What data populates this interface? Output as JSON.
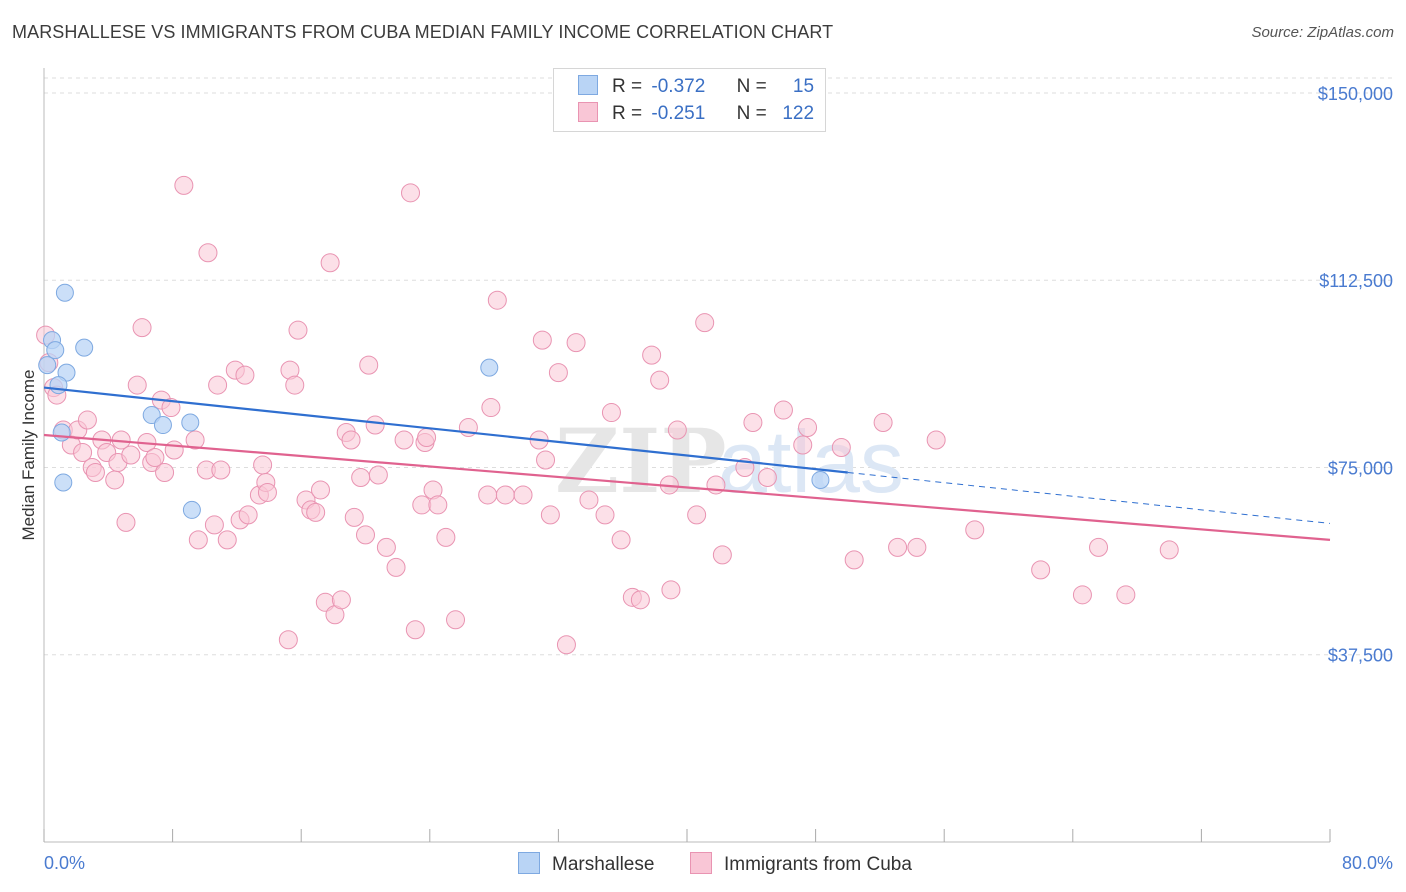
{
  "title": "MARSHALLESE VS IMMIGRANTS FROM CUBA MEDIAN FAMILY INCOME CORRELATION CHART",
  "source": "Source: ZipAtlas.com",
  "watermark": "ZIPatlas",
  "legend_top": {
    "rows": [
      {
        "r_label": "R =",
        "r_value": "-0.372",
        "n_label": "N =",
        "n_value": "15"
      },
      {
        "r_label": "R =",
        "r_value": "-0.251",
        "n_label": "N =",
        "n_value": "122"
      }
    ]
  },
  "colors": {
    "marshallese_fill": "#b9d4f5",
    "marshallese_stroke": "#7ea9e1",
    "marshallese_line": "#2f6fd0",
    "cuba_fill": "#f9c6d6",
    "cuba_stroke": "#e994b2",
    "cuba_line": "#e0628f",
    "axis_text": "#4a7bd0"
  },
  "chart_data": {
    "type": "scatter",
    "title": "MARSHALLESE VS IMMIGRANTS FROM CUBA MEDIAN FAMILY INCOME CORRELATION CHART",
    "xlabel": "",
    "ylabel": "Median Family Income",
    "xlim": [
      0,
      80
    ],
    "ylim": [
      0,
      155000
    ],
    "x_tick_labels": [
      "0.0%",
      "80.0%"
    ],
    "y_ticks": [
      37500,
      75000,
      112500,
      150000
    ],
    "y_tick_labels": [
      "$37,500",
      "$75,000",
      "$112,500",
      "$150,000"
    ],
    "grid": true,
    "legend_position": "top-center",
    "series": [
      {
        "name": "Marshallese",
        "points": [
          [
            0.5,
            100500
          ],
          [
            0.7,
            98500
          ],
          [
            1.3,
            110000
          ],
          [
            1.4,
            94000
          ],
          [
            2.5,
            99000
          ],
          [
            0.9,
            91500
          ],
          [
            1.1,
            82000
          ],
          [
            1.2,
            72000
          ],
          [
            6.7,
            85500
          ],
          [
            7.4,
            83500
          ],
          [
            9.1,
            84000
          ],
          [
            9.2,
            66500
          ],
          [
            27.7,
            95000
          ],
          [
            48.3,
            72500
          ],
          [
            0.2,
            95500
          ]
        ],
        "trend": {
          "x0": 0,
          "y0": 91000,
          "x1": 50,
          "y1": 74000,
          "dash_to_x": 80,
          "dash_to_y": 63800
        }
      },
      {
        "name": "Immigrants from Cuba",
        "points": [
          [
            0.1,
            101500
          ],
          [
            0.3,
            96000
          ],
          [
            0.6,
            91000
          ],
          [
            0.8,
            89500
          ],
          [
            1.2,
            82500
          ],
          [
            1.7,
            79500
          ],
          [
            2.1,
            82500
          ],
          [
            2.4,
            78000
          ],
          [
            2.7,
            84500
          ],
          [
            3.0,
            75000
          ],
          [
            3.2,
            74000
          ],
          [
            3.6,
            80500
          ],
          [
            3.9,
            78000
          ],
          [
            4.4,
            72500
          ],
          [
            4.6,
            76000
          ],
          [
            4.8,
            80500
          ],
          [
            5.1,
            64000
          ],
          [
            5.4,
            77500
          ],
          [
            5.8,
            91500
          ],
          [
            6.1,
            103000
          ],
          [
            6.4,
            80000
          ],
          [
            6.7,
            76000
          ],
          [
            6.9,
            77000
          ],
          [
            7.3,
            88500
          ],
          [
            7.5,
            74000
          ],
          [
            7.9,
            87000
          ],
          [
            8.1,
            78500
          ],
          [
            8.7,
            131500
          ],
          [
            9.4,
            80500
          ],
          [
            9.6,
            60500
          ],
          [
            10.1,
            74500
          ],
          [
            10.2,
            118000
          ],
          [
            10.6,
            63500
          ],
          [
            10.8,
            91500
          ],
          [
            11.0,
            74500
          ],
          [
            11.4,
            60500
          ],
          [
            11.9,
            94500
          ],
          [
            12.2,
            64500
          ],
          [
            12.5,
            93500
          ],
          [
            12.7,
            65500
          ],
          [
            13.4,
            69500
          ],
          [
            13.6,
            75500
          ],
          [
            13.8,
            72000
          ],
          [
            13.9,
            70000
          ],
          [
            15.2,
            40500
          ],
          [
            15.3,
            94500
          ],
          [
            15.6,
            91500
          ],
          [
            15.8,
            102500
          ],
          [
            16.3,
            68500
          ],
          [
            16.6,
            66500
          ],
          [
            16.9,
            66000
          ],
          [
            17.2,
            70500
          ],
          [
            17.5,
            48000
          ],
          [
            17.8,
            116000
          ],
          [
            18.1,
            45500
          ],
          [
            18.5,
            48500
          ],
          [
            18.8,
            82000
          ],
          [
            19.1,
            80500
          ],
          [
            19.3,
            65000
          ],
          [
            19.7,
            73000
          ],
          [
            20.0,
            61500
          ],
          [
            20.2,
            95500
          ],
          [
            20.6,
            83500
          ],
          [
            20.8,
            73500
          ],
          [
            21.3,
            59000
          ],
          [
            21.9,
            55000
          ],
          [
            22.4,
            80500
          ],
          [
            22.8,
            130000
          ],
          [
            23.1,
            42500
          ],
          [
            23.5,
            67500
          ],
          [
            23.7,
            80000
          ],
          [
            23.8,
            81000
          ],
          [
            24.2,
            70500
          ],
          [
            24.5,
            67500
          ],
          [
            25.0,
            61000
          ],
          [
            25.6,
            44500
          ],
          [
            26.4,
            83000
          ],
          [
            27.6,
            69500
          ],
          [
            27.8,
            87000
          ],
          [
            28.2,
            108500
          ],
          [
            28.7,
            69500
          ],
          [
            29.8,
            69500
          ],
          [
            30.8,
            80500
          ],
          [
            31.2,
            76500
          ],
          [
            31.5,
            65500
          ],
          [
            31.0,
            100500
          ],
          [
            32.0,
            94000
          ],
          [
            32.5,
            39500
          ],
          [
            33.1,
            100000
          ],
          [
            33.9,
            68500
          ],
          [
            34.9,
            65500
          ],
          [
            35.3,
            86000
          ],
          [
            35.9,
            60500
          ],
          [
            36.6,
            49000
          ],
          [
            37.1,
            48500
          ],
          [
            37.8,
            97500
          ],
          [
            38.3,
            92500
          ],
          [
            38.9,
            71500
          ],
          [
            39.0,
            50500
          ],
          [
            39.4,
            82500
          ],
          [
            40.6,
            65500
          ],
          [
            41.1,
            104000
          ],
          [
            41.8,
            71500
          ],
          [
            42.2,
            57500
          ],
          [
            43.6,
            75000
          ],
          [
            44.1,
            84000
          ],
          [
            45.0,
            73000
          ],
          [
            46.0,
            86500
          ],
          [
            47.2,
            79500
          ],
          [
            47.5,
            83000
          ],
          [
            49.6,
            79000
          ],
          [
            50.4,
            56500
          ],
          [
            52.2,
            84000
          ],
          [
            53.1,
            59000
          ],
          [
            54.3,
            59000
          ],
          [
            55.5,
            80500
          ],
          [
            57.9,
            62500
          ],
          [
            62.0,
            54500
          ],
          [
            64.6,
            49500
          ],
          [
            65.6,
            59000
          ],
          [
            67.3,
            49500
          ],
          [
            70.0,
            58500
          ]
        ],
        "trend": {
          "x0": 0,
          "y0": 81500,
          "x1": 80,
          "y1": 60500
        }
      }
    ]
  },
  "bottom_legend": {
    "items": [
      {
        "label": "Marshallese"
      },
      {
        "label": "Immigrants from Cuba"
      }
    ]
  }
}
